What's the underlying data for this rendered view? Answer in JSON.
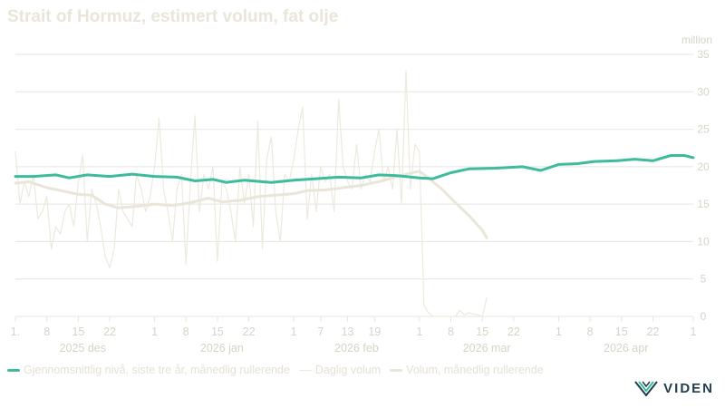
{
  "colors": {
    "avg": "#3dbb9b",
    "daily": "#ece9dd",
    "monthly": "#e9e6d9",
    "grid": "#e4e4e4",
    "axis_text": "#d6d3c7",
    "brand": "#1f3d4a",
    "brand_accent": "#3dbb9b"
  },
  "brand": {
    "name": "VIDEN"
  },
  "chart_data": {
    "type": "line",
    "title": "Strait of Hormuz, estimert volum, fat olje",
    "y_unit": "million",
    "ylim": [
      0,
      35
    ],
    "yticks": [
      0,
      5,
      10,
      15,
      20,
      25,
      30,
      35
    ],
    "grid": true,
    "legend_position": "bottom",
    "xlim": [
      "2025-12-01",
      "2026-05-01"
    ],
    "x_tick_dates": [
      "2025-12-01",
      "2025-12-08",
      "2025-12-15",
      "2025-12-22",
      "2026-01-01",
      "2026-01-08",
      "2026-01-15",
      "2026-01-22",
      "2026-02-01",
      "2026-02-07",
      "2026-02-13",
      "2026-02-19",
      "2026-03-01",
      "2026-03-08",
      "2026-03-15",
      "2026-03-22",
      "2026-04-01",
      "2026-04-08",
      "2026-04-15",
      "2026-04-22",
      "2026-05-01"
    ],
    "x_tick_labels": [
      "1.",
      "8",
      "15",
      "22",
      "1",
      "8",
      "15",
      "22",
      "1",
      "7",
      "13",
      "19",
      "1",
      "8",
      "15",
      "22",
      "1",
      "8",
      "15",
      "22",
      "1"
    ],
    "month_labels": [
      {
        "date": "2025-12-16",
        "label": "2025 des"
      },
      {
        "date": "2026-01-16",
        "label": "2026 jan"
      },
      {
        "date": "2026-02-15",
        "label": "2026 feb"
      },
      {
        "date": "2026-03-16",
        "label": "2026 mar"
      },
      {
        "date": "2026-04-16",
        "label": "2026 apr"
      }
    ],
    "series": [
      {
        "name": "Gjennomsnittlig nivå, siste tre år, månedlig rullerende",
        "style": "avg",
        "points": [
          [
            "2025-12-01",
            18.7
          ],
          [
            "2025-12-05",
            18.7
          ],
          [
            "2025-12-10",
            18.9
          ],
          [
            "2025-12-13",
            18.5
          ],
          [
            "2025-12-17",
            18.9
          ],
          [
            "2025-12-22",
            18.7
          ],
          [
            "2025-12-27",
            19.0
          ],
          [
            "2026-01-01",
            18.7
          ],
          [
            "2026-01-06",
            18.6
          ],
          [
            "2026-01-10",
            18.1
          ],
          [
            "2026-01-14",
            18.3
          ],
          [
            "2026-01-17",
            17.9
          ],
          [
            "2026-01-21",
            18.2
          ],
          [
            "2026-01-27",
            17.9
          ],
          [
            "2026-02-01",
            18.2
          ],
          [
            "2026-02-06",
            18.4
          ],
          [
            "2026-02-11",
            18.6
          ],
          [
            "2026-02-16",
            18.5
          ],
          [
            "2026-02-20",
            18.9
          ],
          [
            "2026-02-24",
            18.8
          ],
          [
            "2026-03-01",
            18.5
          ],
          [
            "2026-03-04",
            18.4
          ],
          [
            "2026-03-08",
            19.2
          ],
          [
            "2026-03-12",
            19.7
          ],
          [
            "2026-03-18",
            19.8
          ],
          [
            "2026-03-24",
            20.0
          ],
          [
            "2026-03-28",
            19.5
          ],
          [
            "2026-04-01",
            20.3
          ],
          [
            "2026-04-05",
            20.4
          ],
          [
            "2026-04-09",
            20.7
          ],
          [
            "2026-04-14",
            20.8
          ],
          [
            "2026-04-18",
            21.0
          ],
          [
            "2026-04-22",
            20.8
          ],
          [
            "2026-04-26",
            21.5
          ],
          [
            "2026-04-29",
            21.5
          ],
          [
            "2026-05-01",
            21.2
          ]
        ]
      },
      {
        "name": "Daglig volum",
        "style": "daily",
        "points": [
          [
            "2025-12-01",
            22
          ],
          [
            "2025-12-02",
            15
          ],
          [
            "2025-12-03",
            18
          ],
          [
            "2025-12-04",
            16
          ],
          [
            "2025-12-05",
            19
          ],
          [
            "2025-12-06",
            13
          ],
          [
            "2025-12-07",
            14
          ],
          [
            "2025-12-08",
            16
          ],
          [
            "2025-12-09",
            9
          ],
          [
            "2025-12-10",
            12
          ],
          [
            "2025-12-11",
            11
          ],
          [
            "2025-12-12",
            14
          ],
          [
            "2025-12-13",
            15
          ],
          [
            "2025-12-14",
            12
          ],
          [
            "2025-12-15",
            18
          ],
          [
            "2025-12-16",
            21.5
          ],
          [
            "2025-12-17",
            10
          ],
          [
            "2025-12-18",
            17
          ],
          [
            "2025-12-19",
            15
          ],
          [
            "2025-12-20",
            12
          ],
          [
            "2025-12-21",
            8
          ],
          [
            "2025-12-22",
            6.5
          ],
          [
            "2025-12-23",
            9
          ],
          [
            "2025-12-24",
            17
          ],
          [
            "2025-12-25",
            14
          ],
          [
            "2025-12-26",
            13
          ],
          [
            "2025-12-27",
            12
          ],
          [
            "2025-12-28",
            19
          ],
          [
            "2025-12-29",
            17
          ],
          [
            "2025-12-30",
            14
          ],
          [
            "2025-12-31",
            16
          ],
          [
            "2026-01-01",
            20
          ],
          [
            "2026-01-02",
            26.5
          ],
          [
            "2026-01-03",
            17
          ],
          [
            "2026-01-04",
            14
          ],
          [
            "2026-01-05",
            10
          ],
          [
            "2026-01-06",
            17
          ],
          [
            "2026-01-07",
            19
          ],
          [
            "2026-01-08",
            7
          ],
          [
            "2026-01-09",
            18
          ],
          [
            "2026-01-10",
            26.8
          ],
          [
            "2026-01-11",
            14
          ],
          [
            "2026-01-12",
            19
          ],
          [
            "2026-01-13",
            17
          ],
          [
            "2026-01-14",
            20
          ],
          [
            "2026-01-15",
            7.3
          ],
          [
            "2026-01-16",
            18
          ],
          [
            "2026-01-17",
            17
          ],
          [
            "2026-01-18",
            14
          ],
          [
            "2026-01-19",
            10
          ],
          [
            "2026-01-20",
            20
          ],
          [
            "2026-01-21",
            15
          ],
          [
            "2026-01-22",
            19
          ],
          [
            "2026-01-23",
            12
          ],
          [
            "2026-01-24",
            26
          ],
          [
            "2026-01-25",
            9
          ],
          [
            "2026-01-26",
            21
          ],
          [
            "2026-01-27",
            24
          ],
          [
            "2026-01-28",
            14
          ],
          [
            "2026-01-29",
            10
          ],
          [
            "2026-01-30",
            19
          ],
          [
            "2026-01-31",
            18
          ],
          [
            "2026-02-01",
            21
          ],
          [
            "2026-02-02",
            25
          ],
          [
            "2026-02-03",
            28
          ],
          [
            "2026-02-04",
            13
          ],
          [
            "2026-02-05",
            19
          ],
          [
            "2026-02-06",
            14
          ],
          [
            "2026-02-07",
            20
          ],
          [
            "2026-02-08",
            18
          ],
          [
            "2026-02-09",
            19
          ],
          [
            "2026-02-10",
            14
          ],
          [
            "2026-02-11",
            29
          ],
          [
            "2026-02-12",
            20
          ],
          [
            "2026-02-13",
            18
          ],
          [
            "2026-02-14",
            17
          ],
          [
            "2026-02-15",
            23
          ],
          [
            "2026-02-16",
            17
          ],
          [
            "2026-02-17",
            19
          ],
          [
            "2026-02-18",
            18
          ],
          [
            "2026-02-19",
            22
          ],
          [
            "2026-02-20",
            25
          ],
          [
            "2026-02-21",
            18
          ],
          [
            "2026-02-22",
            20
          ],
          [
            "2026-02-23",
            17
          ],
          [
            "2026-02-24",
            25
          ],
          [
            "2026-02-25",
            15
          ],
          [
            "2026-02-26",
            32.8
          ],
          [
            "2026-02-27",
            17
          ],
          [
            "2026-02-28",
            23
          ],
          [
            "2026-03-01",
            22
          ],
          [
            "2026-03-02",
            1.5
          ],
          [
            "2026-03-03",
            0.5
          ],
          [
            "2026-03-04",
            0
          ],
          [
            "2026-03-05",
            0
          ],
          [
            "2026-03-06",
            0
          ],
          [
            "2026-03-07",
            0
          ],
          [
            "2026-03-08",
            0
          ],
          [
            "2026-03-09",
            0
          ],
          [
            "2026-03-10",
            0.8
          ],
          [
            "2026-03-11",
            0.2
          ],
          [
            "2026-03-12",
            0.5
          ],
          [
            "2026-03-13",
            0.3
          ],
          [
            "2026-03-14",
            0.2
          ],
          [
            "2026-03-15",
            0
          ],
          [
            "2026-03-16",
            2.5
          ]
        ]
      },
      {
        "name": "Volum, månedlig rullerende",
        "style": "monthly",
        "points": [
          [
            "2025-12-01",
            17.8
          ],
          [
            "2025-12-04",
            18.0
          ],
          [
            "2025-12-08",
            17.2
          ],
          [
            "2025-12-12",
            16.7
          ],
          [
            "2025-12-15",
            16.3
          ],
          [
            "2025-12-18",
            16.2
          ],
          [
            "2025-12-21",
            15.0
          ],
          [
            "2025-12-24",
            14.5
          ],
          [
            "2025-12-28",
            14.7
          ],
          [
            "2026-01-01",
            15.0
          ],
          [
            "2026-01-05",
            14.8
          ],
          [
            "2026-01-09",
            15.2
          ],
          [
            "2026-01-13",
            15.8
          ],
          [
            "2026-01-16",
            15.3
          ],
          [
            "2026-01-20",
            15.5
          ],
          [
            "2026-01-24",
            16.0
          ],
          [
            "2026-01-28",
            16.2
          ],
          [
            "2026-02-01",
            16.4
          ],
          [
            "2026-02-04",
            16.8
          ],
          [
            "2026-02-08",
            16.9
          ],
          [
            "2026-02-12",
            17.2
          ],
          [
            "2026-02-16",
            17.5
          ],
          [
            "2026-02-20",
            18.0
          ],
          [
            "2026-02-24",
            18.7
          ],
          [
            "2026-03-01",
            19.4
          ],
          [
            "2026-03-03",
            18.5
          ],
          [
            "2026-03-06",
            17.0
          ],
          [
            "2026-03-09",
            15.2
          ],
          [
            "2026-03-12",
            13.5
          ],
          [
            "2026-03-15",
            11.5
          ],
          [
            "2026-03-16",
            10.5
          ]
        ]
      }
    ]
  }
}
